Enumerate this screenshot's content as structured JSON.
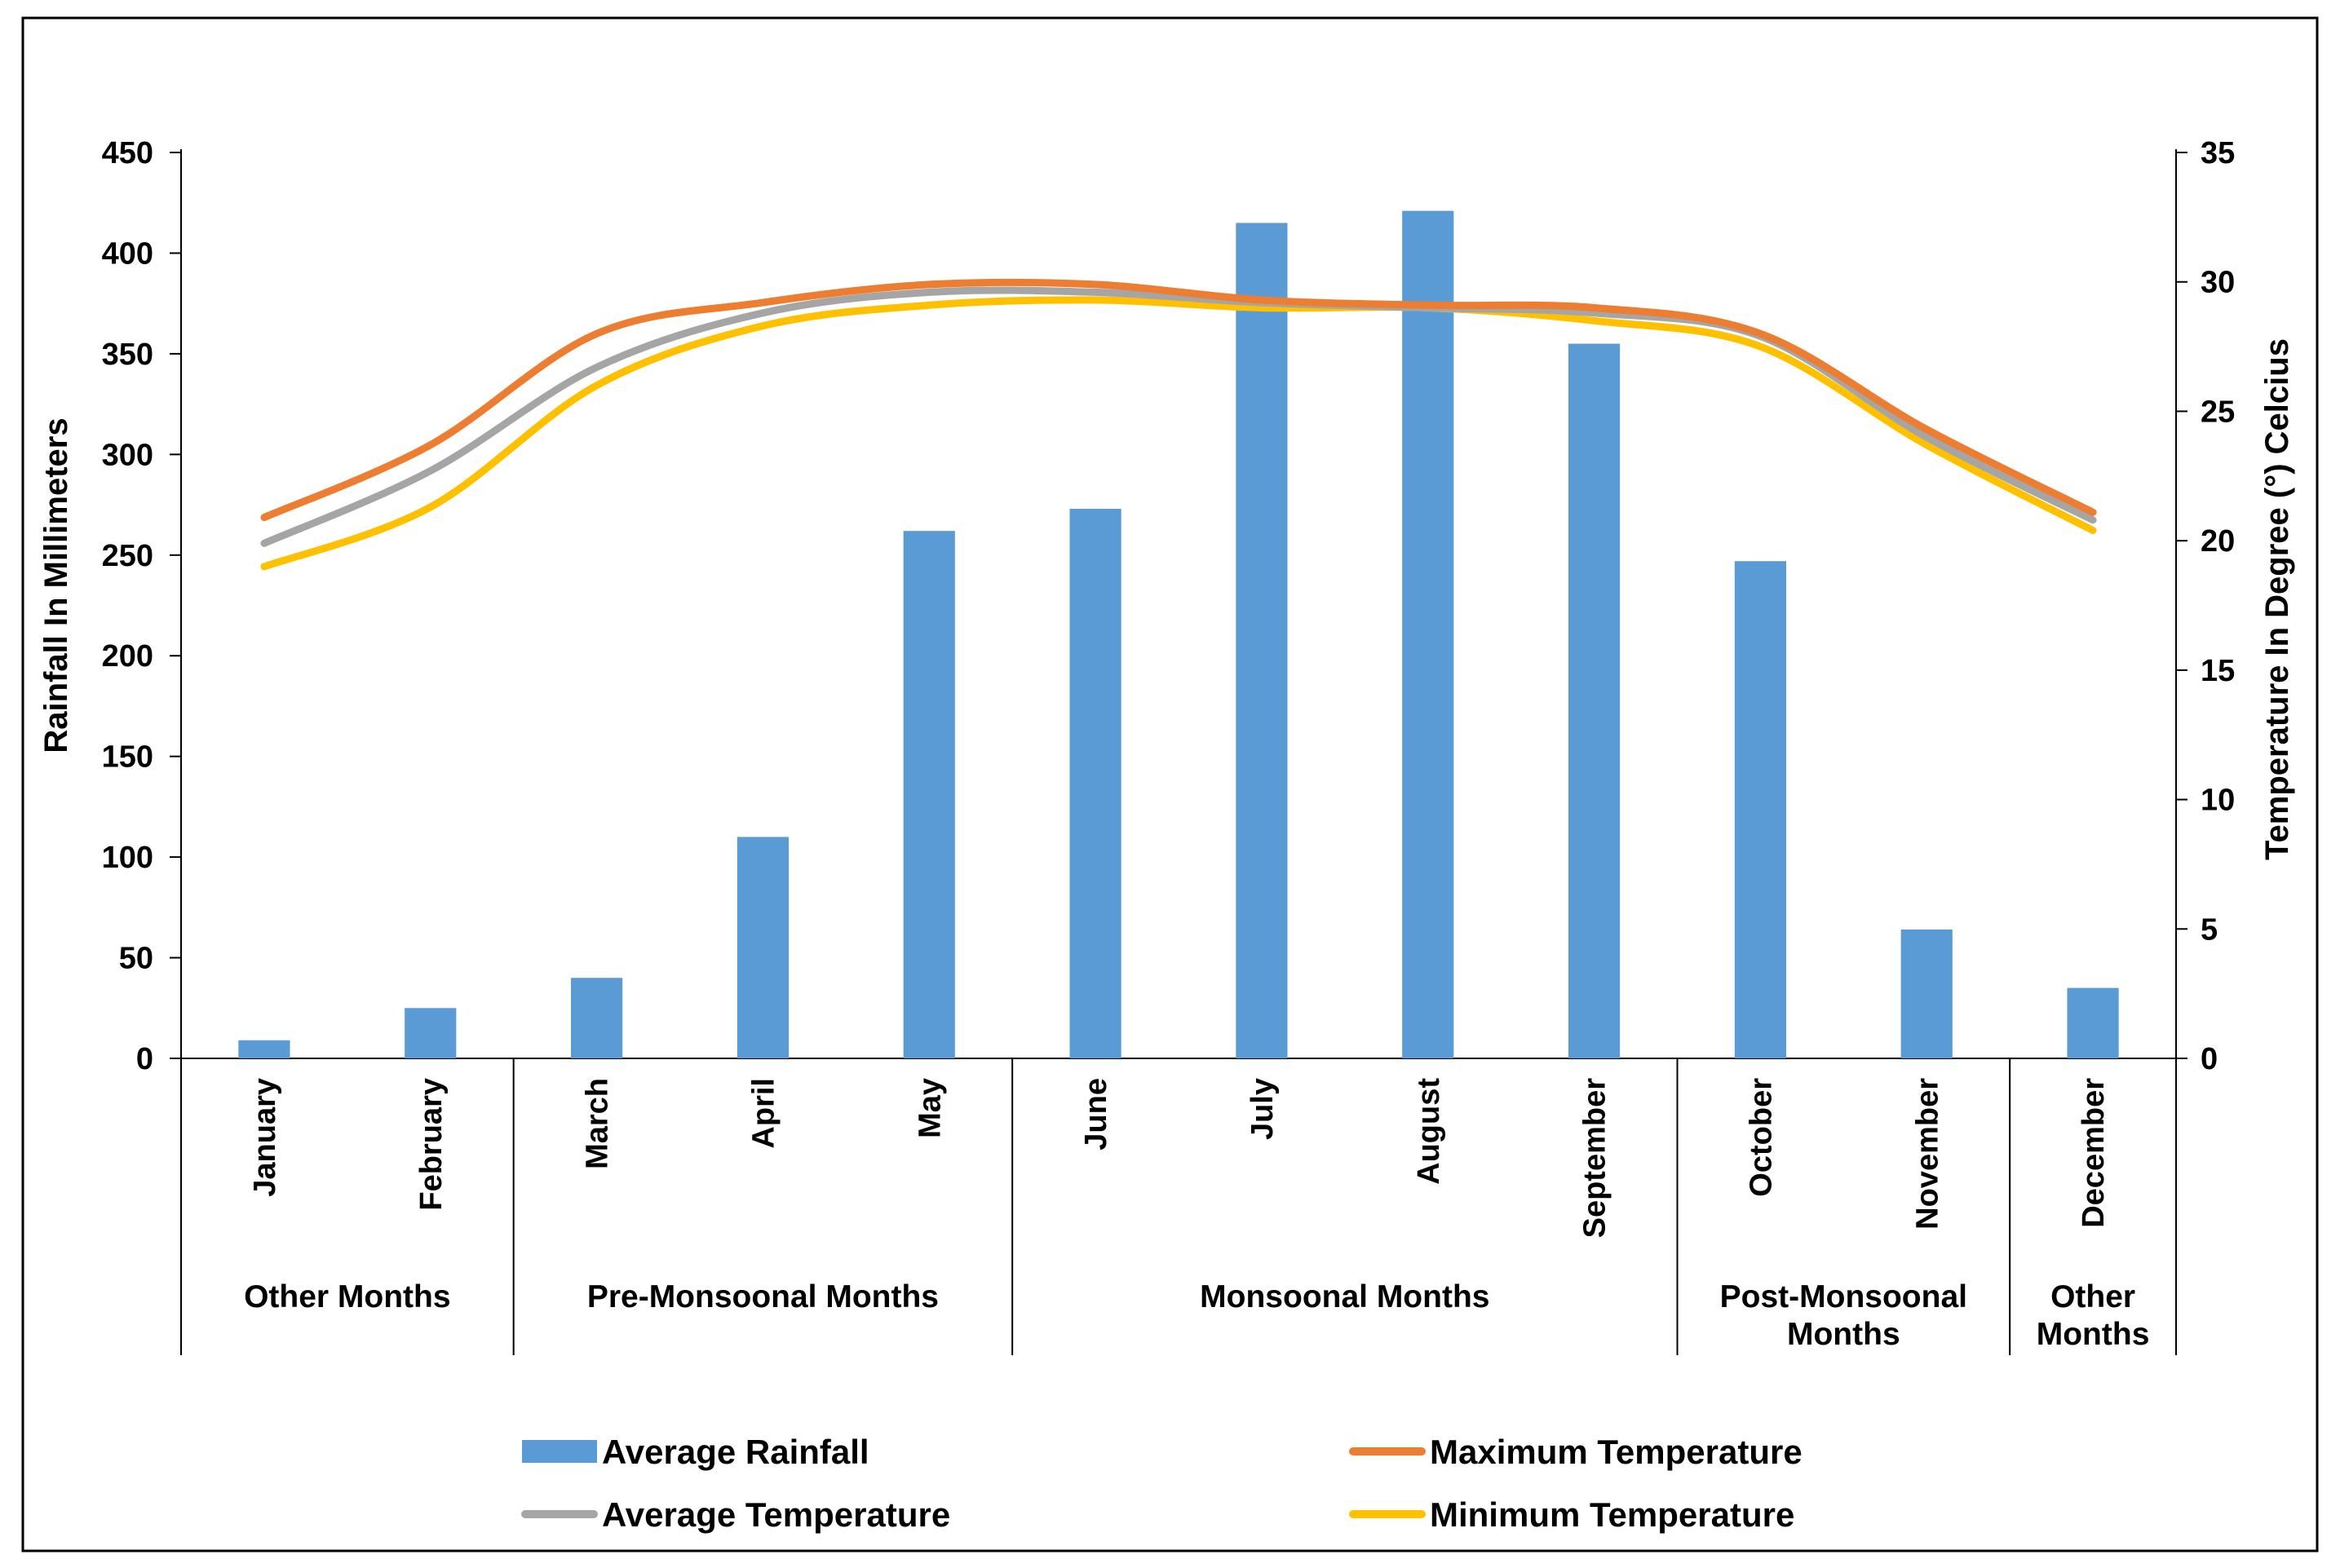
{
  "chart_data": {
    "type": "bar",
    "categories": [
      "January",
      "February",
      "March",
      "April",
      "May",
      "June",
      "July",
      "August",
      "September",
      "October",
      "November",
      "December"
    ],
    "groups": [
      {
        "label": "Other Months",
        "months": [
          "January",
          "February"
        ]
      },
      {
        "label": "Pre-Monsoonal Months",
        "months": [
          "March",
          "April",
          "May"
        ]
      },
      {
        "label": "Monsoonal Months",
        "months": [
          "June",
          "July",
          "August",
          "September"
        ]
      },
      {
        "label": "Post-Monsoonal Months",
        "months": [
          "October",
          "November"
        ]
      },
      {
        "label": "Other Months",
        "months": [
          "December"
        ]
      }
    ],
    "left_axis": {
      "label": "Rainfall In Millimeters",
      "min": 0,
      "max": 450,
      "ticks": [
        "0",
        "50",
        "100",
        "150",
        "200",
        "250",
        "300",
        "350",
        "400",
        "450"
      ]
    },
    "right_axis": {
      "label": "Temperature In Degree (°) Celcius",
      "min": 0,
      "max": 35,
      "ticks": [
        "0",
        "5",
        "10",
        "15",
        "20",
        "25",
        "30",
        "35"
      ]
    },
    "series": [
      {
        "name": "Average Rainfall",
        "kind": "bar",
        "axis": "left",
        "color": "#5B9BD5",
        "values": [
          9,
          25,
          40,
          110,
          262,
          273,
          415,
          421,
          355,
          247,
          64,
          35
        ]
      },
      {
        "name": "Maximum Temperature",
        "kind": "line",
        "axis": "right",
        "color": "#ED7D31",
        "values": [
          20.9,
          23.7,
          28.0,
          29.2,
          29.9,
          29.9,
          29.3,
          29.1,
          29.0,
          28.0,
          24.3,
          21.1
        ]
      },
      {
        "name": "Average Temperature",
        "kind": "line",
        "axis": "right",
        "color": "#A5A5A5",
        "values": [
          19.9,
          22.7,
          26.7,
          28.8,
          29.6,
          29.6,
          29.2,
          29.0,
          28.8,
          27.9,
          24.0,
          20.8
        ]
      },
      {
        "name": "Minimum Temperature",
        "kind": "line",
        "axis": "right",
        "color": "#FFC000",
        "values": [
          19.0,
          21.3,
          26.0,
          28.3,
          29.1,
          29.3,
          29.0,
          29.0,
          28.5,
          27.5,
          23.7,
          20.4
        ]
      }
    ],
    "legend": [
      "Average Rainfall",
      "Maximum Temperature",
      "Average Temperature",
      "Minimum Temperature"
    ]
  }
}
